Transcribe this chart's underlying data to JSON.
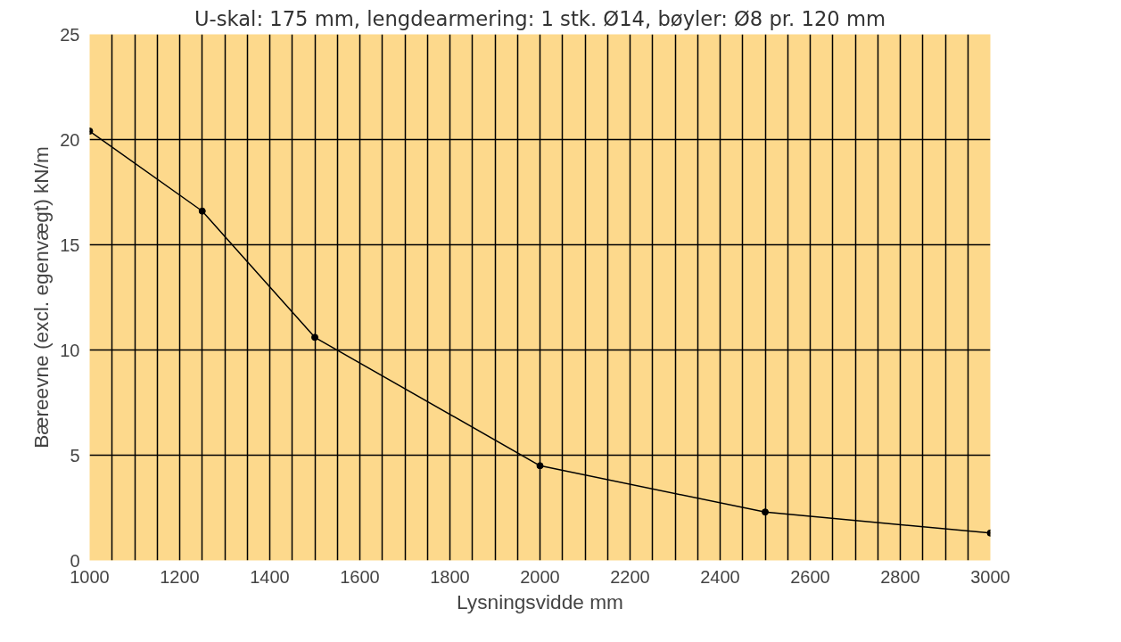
{
  "chart_data": {
    "type": "line",
    "title": "U-skal: 175 mm, lengdearmering: 1 stk. Ø14, bøyler: Ø8 pr. 120 mm",
    "xlabel": "Lysningsvidde mm",
    "ylabel": "Bæreevne (excl. egenvægt) kN/m",
    "x": [
      1000,
      1250,
      1500,
      2000,
      2500,
      3000
    ],
    "series": [
      {
        "color": "#000000",
        "values": [
          20.4,
          16.6,
          10.6,
          4.5,
          2.3,
          1.3
        ]
      }
    ],
    "xlim": [
      1000,
      3000
    ],
    "ylim": [
      0,
      25
    ],
    "xticks": [
      1000,
      {
        "value": 1050,
        "label": null
      },
      {
        "value": 1100,
        "label": null
      },
      {
        "value": 1150,
        "label": null
      },
      1200,
      {
        "value": 1250,
        "label": null
      },
      {
        "value": 1300,
        "label": null
      },
      {
        "value": 1350,
        "label": null
      },
      1400,
      {
        "value": 1450,
        "label": null
      },
      {
        "value": 1500,
        "label": null
      },
      {
        "value": 1550,
        "label": null
      },
      1600,
      {
        "value": 1650,
        "label": null
      },
      {
        "value": 1700,
        "label": null
      },
      {
        "value": 1750,
        "label": null
      },
      1800,
      {
        "value": 1850,
        "label": null
      },
      {
        "value": 1900,
        "label": null
      },
      {
        "value": 1950,
        "label": null
      },
      2000,
      {
        "value": 2050,
        "label": null
      },
      {
        "value": 2100,
        "label": null
      },
      {
        "value": 2150,
        "label": null
      },
      2200,
      {
        "value": 2250,
        "label": null
      },
      {
        "value": 2300,
        "label": null
      },
      {
        "value": 2350,
        "label": null
      },
      2400,
      {
        "value": 2450,
        "label": null
      },
      {
        "value": 2500,
        "label": null
      },
      {
        "value": 2550,
        "label": null
      },
      2600,
      {
        "value": 2650,
        "label": null
      },
      {
        "value": 2700,
        "label": null
      },
      {
        "value": 2750,
        "label": null
      },
      2800,
      {
        "value": 2850,
        "label": null
      },
      {
        "value": 2900,
        "label": null
      },
      {
        "value": 2950,
        "label": null
      },
      3000
    ],
    "yticks": [
      0,
      5,
      10,
      15,
      20,
      25
    ],
    "grid": true,
    "marker": "circle",
    "line_style": "solid"
  }
}
